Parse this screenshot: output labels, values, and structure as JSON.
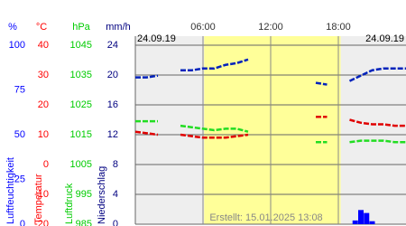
{
  "chart_data": {
    "type": "line",
    "date_left": "24.09.19",
    "date_right": "24.09.19",
    "footer": "Erstellt: 15.01.2025 13:08",
    "xlim": [
      0,
      24
    ],
    "xticks": [
      {
        "value": 6,
        "label": "06:00"
      },
      {
        "value": 12,
        "label": "12:00"
      },
      {
        "value": 18,
        "label": "18:00"
      }
    ],
    "daylight": [
      6.1,
      18.2
    ],
    "axes": [
      {
        "unit": "%",
        "title": "Luftfeuchtigkeit",
        "color": "#0000ff",
        "ylim": [
          0,
          100
        ],
        "yticks": [
          0,
          25,
          50,
          75,
          100
        ]
      },
      {
        "unit": "°C",
        "title": "Temperatur",
        "color": "#ff0000",
        "ylim": [
          -20,
          40
        ],
        "yticks": [
          -20,
          -10,
          0,
          10,
          20,
          30,
          40
        ]
      },
      {
        "unit": "hPa",
        "title": "Luftdruck",
        "color": "#00cc00",
        "ylim": [
          985,
          1045
        ],
        "yticks": [
          985,
          995,
          1005,
          1015,
          1025,
          1035,
          1045
        ]
      },
      {
        "unit": "mm/h",
        "title": "Niederschlag",
        "color": "#000080",
        "ylim": [
          0,
          24
        ],
        "yticks": [
          0,
          4,
          8,
          12,
          16,
          20,
          24
        ]
      }
    ],
    "series": [
      {
        "axis": 0,
        "type": "line",
        "color": "#0022bb",
        "x": [
          0,
          1,
          2,
          3,
          4,
          5,
          6,
          7,
          8,
          9,
          10,
          11,
          12,
          13,
          14,
          15,
          16,
          17,
          18,
          19,
          20,
          21,
          22,
          23,
          24
        ],
        "values": [
          82,
          82,
          83,
          null,
          86,
          86,
          87,
          87,
          89,
          90,
          92,
          null,
          null,
          null,
          null,
          null,
          79,
          78,
          null,
          80,
          83,
          86,
          87,
          87,
          87
        ]
      },
      {
        "axis": 1,
        "type": "line",
        "color": "#e00000",
        "x": [
          0,
          1,
          2,
          3,
          4,
          5,
          6,
          7,
          8,
          9,
          10,
          11,
          12,
          13,
          14,
          15,
          16,
          17,
          18,
          19,
          20,
          21,
          22,
          23,
          24
        ],
        "values": [
          11,
          10.5,
          10,
          null,
          10,
          9.5,
          9,
          9,
          9,
          9.5,
          10,
          null,
          null,
          null,
          null,
          null,
          16,
          16,
          null,
          15,
          14,
          13.5,
          13.5,
          13,
          13
        ]
      },
      {
        "axis": 2,
        "type": "line",
        "color": "#22dd22",
        "x": [
          0,
          1,
          2,
          3,
          4,
          5,
          6,
          7,
          8,
          9,
          10,
          11,
          12,
          13,
          14,
          15,
          16,
          17,
          18,
          19,
          20,
          21,
          22,
          23,
          24
        ],
        "values": [
          1019.5,
          1019.5,
          1019.5,
          null,
          1018,
          1017.5,
          1017,
          1016.5,
          1017,
          1017,
          1016,
          null,
          null,
          null,
          null,
          null,
          1012.5,
          1012.5,
          null,
          1012.5,
          1013,
          1013,
          1013,
          1012.5,
          1012.5
        ]
      },
      {
        "axis": 3,
        "type": "bar",
        "color": "#0000ff",
        "x": [
          19.5,
          20,
          20.5,
          21
        ],
        "values": [
          0.5,
          1.9,
          1.5,
          0.4
        ]
      }
    ]
  }
}
